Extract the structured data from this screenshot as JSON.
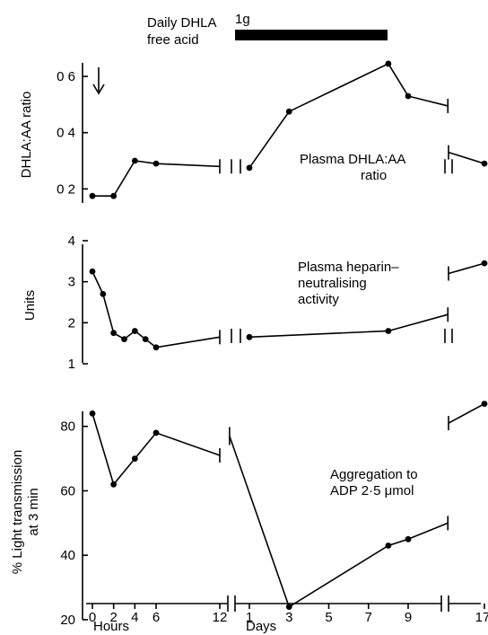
{
  "header": {
    "treatment_line1": "Daily DHLA",
    "treatment_line2": "free acid",
    "dose": "1g"
  },
  "x_axis": {
    "hours_label": "Hours",
    "days_label": "Days",
    "hours_ticks": [
      "0",
      "2",
      "4",
      "6",
      "12"
    ],
    "days_ticks": [
      "1",
      "3",
      "5",
      "7",
      "9"
    ],
    "final_tick": "17"
  },
  "chart_data": [
    {
      "type": "line",
      "ylabel": "DHLA:AA ratio",
      "annotation": [
        "Plasma DHLA:AA",
        "ratio"
      ],
      "ylim": [
        0.15,
        0.68
      ],
      "yticks": [
        0.2,
        0.4,
        0.6
      ],
      "ytick_labels": [
        "0 2",
        "0 4",
        "0 6"
      ],
      "hours_series": {
        "x": [
          0,
          2,
          3,
          4,
          6,
          12
        ],
        "y": [
          0.175,
          0.175,
          null,
          0.3,
          0.29,
          0.28
        ]
      },
      "days_series": {
        "x": [
          1,
          3,
          8,
          9,
          11
        ],
        "y": [
          0.275,
          0.475,
          0.645,
          0.53,
          0.495
        ]
      },
      "final_series": {
        "x": [
          16,
          17
        ],
        "y": [
          0.33,
          0.29
        ]
      },
      "treatment_marker": "arrow at hour 0"
    },
    {
      "type": "line",
      "ylabel": "Units",
      "annotation": [
        "Plasma heparin–",
        "neutralising",
        "activity"
      ],
      "ylim": [
        1,
        4
      ],
      "yticks": [
        1,
        2,
        3,
        4
      ],
      "ytick_labels": [
        "1",
        "2",
        "3",
        "4"
      ],
      "hours_series": {
        "x": [
          0,
          1,
          2,
          3,
          4,
          5,
          6,
          12
        ],
        "y": [
          3.25,
          2.7,
          1.75,
          1.6,
          1.8,
          1.6,
          1.4,
          1.65
        ]
      },
      "days_series": {
        "x": [
          1,
          8,
          11
        ],
        "y": [
          1.65,
          1.8,
          2.2
        ]
      },
      "final_series": {
        "x": [
          16,
          17
        ],
        "y": [
          3.2,
          3.45
        ]
      }
    },
    {
      "type": "line",
      "ylabel": "% Light transmission at 3 min",
      "ylabel_lines": [
        "% Light transmission",
        "at 3 min"
      ],
      "annotation": [
        "Aggregation to",
        "ADP 2·5 μmol"
      ],
      "ylim": [
        20,
        88
      ],
      "yticks": [
        20,
        40,
        60,
        80
      ],
      "ytick_labels": [
        "20",
        "40",
        "60",
        "80"
      ],
      "hours_series": {
        "x": [
          0,
          2,
          4,
          6,
          12
        ],
        "y": [
          84,
          62,
          70,
          78,
          71
        ]
      },
      "days_series": {
        "x": [
          0,
          3,
          8,
          9,
          11
        ],
        "y": [
          77,
          24,
          43,
          45,
          50
        ]
      },
      "final_series": {
        "x": [
          16,
          17
        ],
        "y": [
          81,
          87
        ]
      }
    }
  ]
}
